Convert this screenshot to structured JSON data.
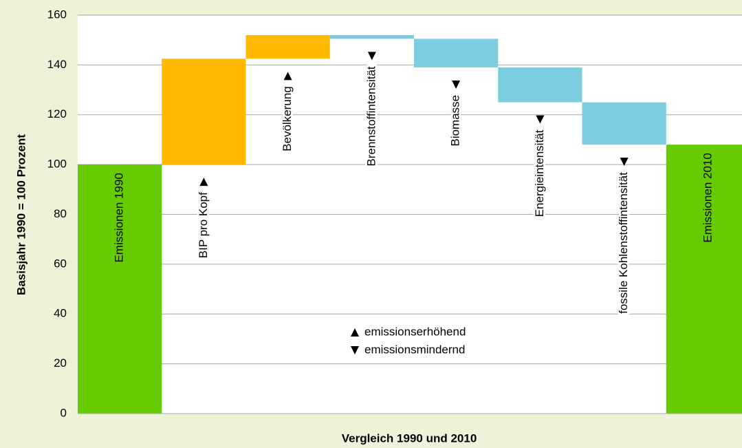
{
  "chart_data": {
    "type": "waterfall",
    "ylabel": "Basisjahr 1990 = 100 Prozent",
    "xlabel": "Vergleich 1990 und 2010",
    "categories": [
      "Emissionen 1990",
      "BIP pro Kopf",
      "Bevölkerung",
      "Brennstoffintensität",
      "Biomasse",
      "Energieintensität",
      "fossile Kohlenstoffintensität",
      "Emissionen 2010"
    ],
    "values": [
      100,
      42.5,
      9.5,
      -1.5,
      -11.5,
      -14,
      -17,
      108
    ],
    "measure": [
      "absolute",
      "relative",
      "relative",
      "relative",
      "relative",
      "relative",
      "relative",
      "absolute"
    ],
    "colors": {
      "absolute": "#66cc00",
      "increase": "#ffb900",
      "decrease": "#7ccde0"
    },
    "legend": {
      "increase": "emissionserhöhend",
      "decrease": "emissionsmindernd"
    },
    "ylim": [
      0,
      160
    ],
    "yticks": [
      0,
      20,
      40,
      60,
      80,
      100,
      120,
      140,
      160
    ],
    "grid": true
  }
}
